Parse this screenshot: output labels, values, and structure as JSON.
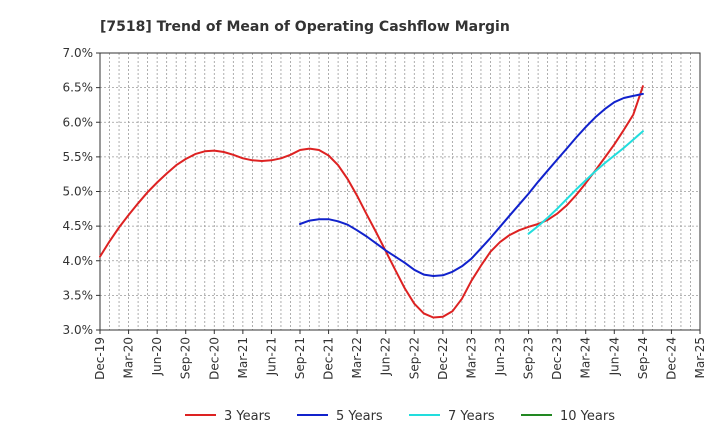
{
  "chart_data": {
    "type": "line",
    "title": "[7518]  Trend of Mean of Operating Cashflow Margin",
    "xlabel": "",
    "ylabel": "",
    "x_ticks": [
      "Dec-19",
      "Mar-20",
      "Jun-20",
      "Sep-20",
      "Dec-20",
      "Mar-21",
      "Jun-21",
      "Sep-21",
      "Dec-21",
      "Mar-22",
      "Jun-22",
      "Sep-22",
      "Dec-22",
      "Mar-23",
      "Jun-23",
      "Sep-23",
      "Dec-23",
      "Mar-24",
      "Jun-24",
      "Sep-24",
      "Dec-24",
      "Mar-25"
    ],
    "y_ticks": [
      "3.0%",
      "3.5%",
      "4.0%",
      "4.5%",
      "5.0%",
      "5.5%",
      "6.0%",
      "6.5%",
      "7.0%"
    ],
    "ylim": [
      3.0,
      7.0
    ],
    "grid": true,
    "legend_position": "bottom",
    "series": [
      {
        "name": "3 Years",
        "color": "#dd2222",
        "x": [
          "Dec-19",
          "Jan-20",
          "Feb-20",
          "Mar-20",
          "Apr-20",
          "May-20",
          "Jun-20",
          "Jul-20",
          "Aug-20",
          "Sep-20",
          "Oct-20",
          "Nov-20",
          "Dec-20",
          "Jan-21",
          "Feb-21",
          "Mar-21",
          "Apr-21",
          "May-21",
          "Jun-21",
          "Jul-21",
          "Aug-21",
          "Sep-21",
          "Oct-21",
          "Nov-21",
          "Dec-21",
          "Jan-22",
          "Feb-22",
          "Mar-22",
          "Apr-22",
          "May-22",
          "Jun-22",
          "Jul-22",
          "Aug-22",
          "Sep-22",
          "Oct-22",
          "Nov-22",
          "Dec-22",
          "Jan-23",
          "Feb-23",
          "Mar-23",
          "Apr-23",
          "May-23",
          "Jun-23",
          "Jul-23",
          "Aug-23",
          "Sep-23",
          "Oct-23",
          "Nov-23",
          "Dec-23",
          "Jan-24",
          "Feb-24",
          "Mar-24",
          "Apr-24",
          "May-24",
          "Jun-24",
          "Jul-24",
          "Aug-24",
          "Sep-24"
        ],
        "values": [
          4.06,
          4.28,
          4.48,
          4.66,
          4.83,
          4.99,
          5.13,
          5.26,
          5.38,
          5.47,
          5.54,
          5.58,
          5.59,
          5.57,
          5.53,
          5.48,
          5.45,
          5.44,
          5.45,
          5.48,
          5.53,
          5.6,
          5.62,
          5.6,
          5.52,
          5.38,
          5.18,
          4.94,
          4.67,
          4.41,
          4.14,
          3.87,
          3.6,
          3.38,
          3.24,
          3.18,
          3.19,
          3.27,
          3.45,
          3.71,
          3.93,
          4.13,
          4.27,
          4.37,
          4.44,
          4.49,
          4.53,
          4.59,
          4.68,
          4.8,
          4.95,
          5.12,
          5.3,
          5.49,
          5.68,
          5.89,
          6.11,
          6.52
        ]
      },
      {
        "name": "5 Years",
        "color": "#1122cc",
        "x": [
          "Sep-21",
          "Oct-21",
          "Nov-21",
          "Dec-21",
          "Jan-22",
          "Feb-22",
          "Mar-22",
          "Apr-22",
          "May-22",
          "Jun-22",
          "Jul-22",
          "Aug-22",
          "Sep-22",
          "Oct-22",
          "Nov-22",
          "Dec-22",
          "Jan-23",
          "Feb-23",
          "Mar-23",
          "Apr-23",
          "May-23",
          "Jun-23",
          "Jul-23",
          "Aug-23",
          "Sep-23",
          "Oct-23",
          "Nov-23",
          "Dec-23",
          "Jan-24",
          "Feb-24",
          "Mar-24",
          "Apr-24",
          "May-24",
          "Jun-24",
          "Jul-24",
          "Aug-24",
          "Sep-24"
        ],
        "values": [
          4.53,
          4.58,
          4.6,
          4.6,
          4.57,
          4.52,
          4.44,
          4.35,
          4.25,
          4.15,
          4.06,
          3.97,
          3.87,
          3.8,
          3.78,
          3.79,
          3.84,
          3.92,
          4.03,
          4.18,
          4.33,
          4.49,
          4.65,
          4.81,
          4.97,
          5.14,
          5.3,
          5.46,
          5.62,
          5.78,
          5.93,
          6.07,
          6.19,
          6.29,
          6.35,
          6.38,
          6.41
        ]
      },
      {
        "name": "7 Years",
        "color": "#22dddd",
        "x": [
          "Sep-23",
          "Oct-23",
          "Nov-23",
          "Dec-23",
          "Jan-24",
          "Feb-24",
          "Mar-24",
          "Apr-24",
          "May-24",
          "Jun-24",
          "Jul-24",
          "Aug-24",
          "Sep-24"
        ],
        "values": [
          4.39,
          4.5,
          4.62,
          4.75,
          4.89,
          5.03,
          5.16,
          5.29,
          5.41,
          5.52,
          5.63,
          5.75,
          5.87
        ]
      },
      {
        "name": "10 Years",
        "color": "#228822",
        "x": [],
        "values": []
      }
    ]
  }
}
